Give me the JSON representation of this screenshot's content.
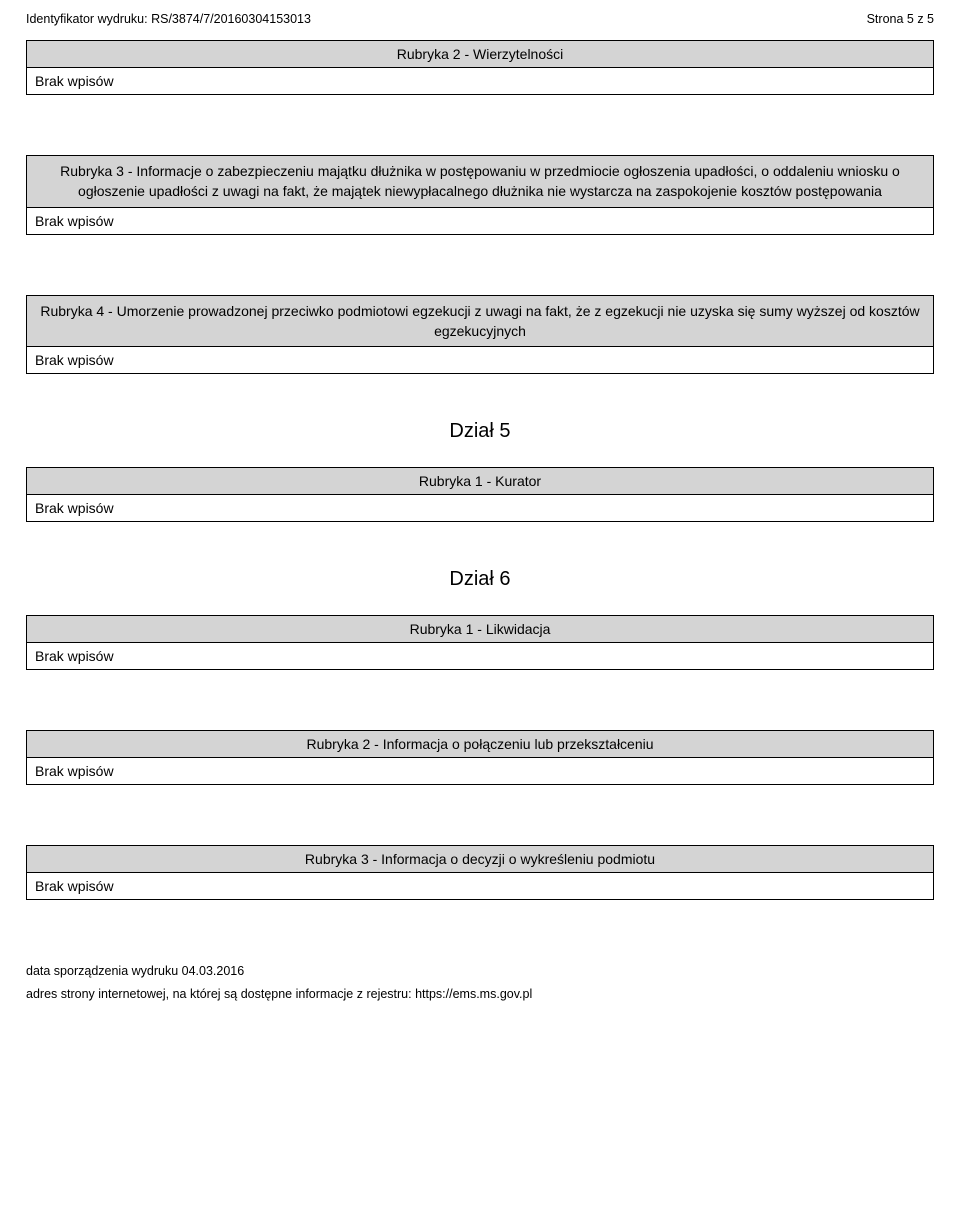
{
  "header": {
    "identifier_label": "Identyfikator wydruku:",
    "identifier_value": "RS/3874/7/20160304153013",
    "page_label": "Strona 5 z 5"
  },
  "sections": {
    "r2_wierz": {
      "title": "Rubryka 2 - Wierzytelności",
      "body": "Brak wpisów"
    },
    "r3_info": {
      "title": "Rubryka 3 - Informacje o zabezpieczeniu majątku dłużnika w postępowaniu w przedmiocie ogłoszenia upadłości, o oddaleniu wniosku o ogłoszenie upadłości z uwagi na fakt, że majątek niewypłacalnego dłużnika nie wystarcza na zaspokojenie kosztów postępowania",
      "body": "Brak wpisów"
    },
    "r4_umorz": {
      "title": "Rubryka 4 - Umorzenie prowadzonej przeciwko podmiotowi egzekucji z uwagi na fakt, że z egzekucji nie uzyska się sumy wyższej od kosztów egzekucyjnych",
      "body": "Brak wpisów"
    },
    "dzial5": "Dział 5",
    "r1_kurator": {
      "title": "Rubryka 1 - Kurator",
      "body": "Brak wpisów"
    },
    "dzial6": "Dział 6",
    "r1_likw": {
      "title": "Rubryka 1 - Likwidacja",
      "body": "Brak wpisów"
    },
    "r2_polacz": {
      "title": "Rubryka 2 - Informacja o połączeniu lub przekształceniu",
      "body": "Brak wpisów"
    },
    "r3_wykres": {
      "title": "Rubryka 3 - Informacja o decyzji o wykreśleniu podmiotu",
      "body": "Brak wpisów"
    }
  },
  "footer": {
    "date_line": "data sporządzenia wydruku 04.03.2016",
    "url_line": "adres strony internetowej, na której są dostępne informacje z rejestru: https://ems.ms.gov.pl"
  },
  "colors": {
    "header_bg": "#d4d4d4",
    "border": "#000000",
    "page_bg": "#ffffff",
    "text": "#000000"
  },
  "typography": {
    "header_font_size_pt": 9,
    "cell_font_size_pt": 10.5,
    "dzial_font_size_pt": 15,
    "footer_font_size_pt": 9
  }
}
